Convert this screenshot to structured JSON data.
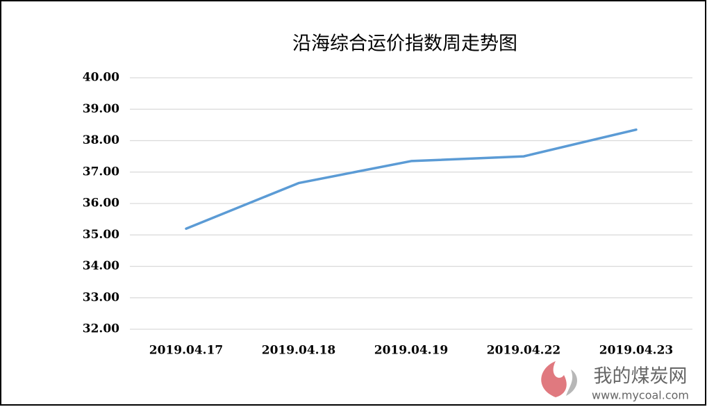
{
  "chart_data": {
    "type": "line",
    "title": "沿海综合运价指数周走势图",
    "categories": [
      "2019.04.17",
      "2019.04.18",
      "2019.04.19",
      "2019.04.22",
      "2019.04.23"
    ],
    "series": [
      {
        "name": "沿海综合运价指数",
        "color": "#5b9bd5",
        "values": [
          35.2,
          36.65,
          37.35,
          37.5,
          38.35
        ]
      }
    ],
    "ylim": [
      32,
      40
    ],
    "yticks": [
      {
        "value": 32,
        "label": "32.00"
      },
      {
        "value": 33,
        "label": "33.00"
      },
      {
        "value": 34,
        "label": "34.00"
      },
      {
        "value": 35,
        "label": "35.00"
      },
      {
        "value": 36,
        "label": "36.00"
      },
      {
        "value": 37,
        "label": "37.00"
      },
      {
        "value": 38,
        "label": "38.00"
      },
      {
        "value": 39,
        "label": "39.00"
      },
      {
        "value": 40,
        "label": "40.00"
      }
    ],
    "grid": true
  },
  "watermark": {
    "name": "我的煤炭网",
    "url": "www.mycoal.com"
  }
}
